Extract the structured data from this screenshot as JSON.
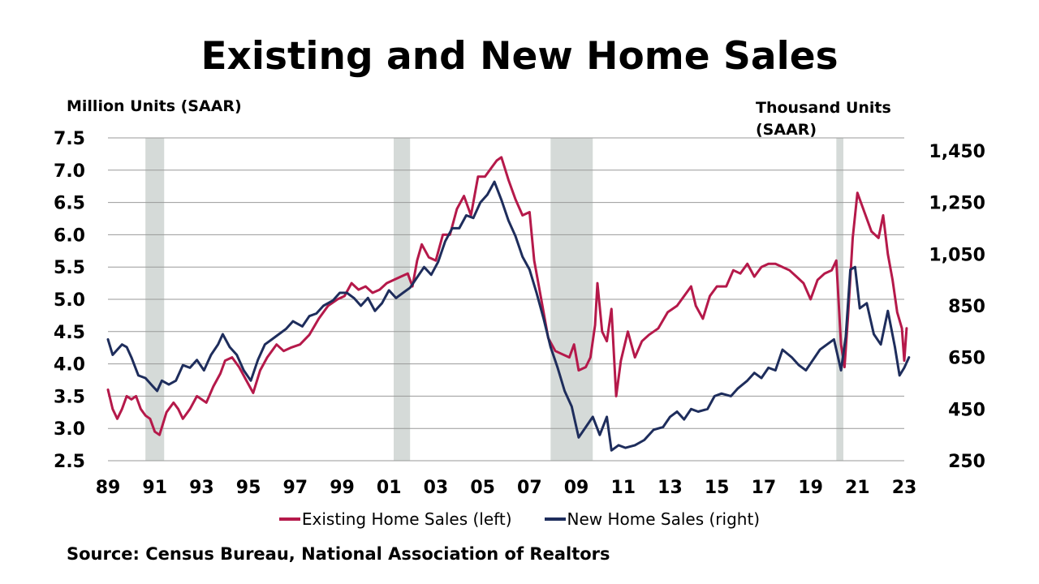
{
  "title": "Existing and New Home Sales",
  "source": "Source: Census Bureau, National Association of Realtors",
  "colors": {
    "existing": "#B5194A",
    "new": "#1E2D5C",
    "recession": "#D5DAD8",
    "grid": "#999999"
  },
  "chart_data": {
    "type": "line",
    "title": "Existing and New Home Sales",
    "left_axis": {
      "label": "Million Units (SAAR)",
      "range": [
        2.5,
        7.5
      ],
      "ticks": [
        "2.5",
        "3.0",
        "3.5",
        "4.0",
        "4.5",
        "5.0",
        "5.5",
        "6.0",
        "6.5",
        "7.0",
        "7.5"
      ]
    },
    "right_axis": {
      "label_lines": [
        "Thousand Units",
        "(SAAR)"
      ],
      "range": [
        250,
        1500
      ],
      "ticks": [
        "250",
        "450",
        "650",
        "850",
        "1,050",
        "1,250",
        "1,450"
      ]
    },
    "x_axis": {
      "range": [
        1989,
        2023
      ],
      "ticks": [
        "89",
        "91",
        "93",
        "95",
        "97",
        "99",
        "01",
        "03",
        "05",
        "07",
        "09",
        "11",
        "13",
        "15",
        "17",
        "19",
        "21",
        "23"
      ]
    },
    "grid": "horizontal, left axis",
    "legend_position": "bottom",
    "recession_bands": [
      [
        1990.6,
        1991.4
      ],
      [
        2001.2,
        2001.9
      ],
      [
        2007.9,
        2009.7
      ],
      [
        2020.1,
        2020.4
      ]
    ],
    "series": [
      {
        "name": "Existing Home Sales (left)",
        "axis": "left",
        "points": [
          [
            1989.0,
            3.6
          ],
          [
            1989.2,
            3.3
          ],
          [
            1989.4,
            3.15
          ],
          [
            1989.6,
            3.3
          ],
          [
            1989.8,
            3.5
          ],
          [
            1990.0,
            3.45
          ],
          [
            1990.2,
            3.5
          ],
          [
            1990.4,
            3.3
          ],
          [
            1990.6,
            3.2
          ],
          [
            1990.8,
            3.15
          ],
          [
            1991.0,
            2.95
          ],
          [
            1991.2,
            2.9
          ],
          [
            1991.5,
            3.25
          ],
          [
            1991.8,
            3.4
          ],
          [
            1992.0,
            3.3
          ],
          [
            1992.2,
            3.15
          ],
          [
            1992.5,
            3.3
          ],
          [
            1992.8,
            3.5
          ],
          [
            1993.2,
            3.4
          ],
          [
            1993.5,
            3.65
          ],
          [
            1993.8,
            3.85
          ],
          [
            1994.0,
            4.05
          ],
          [
            1994.3,
            4.1
          ],
          [
            1994.6,
            3.95
          ],
          [
            1994.9,
            3.75
          ],
          [
            1995.2,
            3.55
          ],
          [
            1995.5,
            3.9
          ],
          [
            1995.8,
            4.1
          ],
          [
            1996.2,
            4.3
          ],
          [
            1996.5,
            4.2
          ],
          [
            1996.8,
            4.25
          ],
          [
            1997.2,
            4.3
          ],
          [
            1997.6,
            4.45
          ],
          [
            1998.0,
            4.7
          ],
          [
            1998.4,
            4.9
          ],
          [
            1998.8,
            5.0
          ],
          [
            1999.1,
            5.05
          ],
          [
            1999.4,
            5.25
          ],
          [
            1999.7,
            5.15
          ],
          [
            2000.0,
            5.2
          ],
          [
            2000.3,
            5.1
          ],
          [
            2000.6,
            5.15
          ],
          [
            2000.9,
            5.25
          ],
          [
            2001.2,
            5.3
          ],
          [
            2001.5,
            5.35
          ],
          [
            2001.8,
            5.4
          ],
          [
            2002.0,
            5.2
          ],
          [
            2002.2,
            5.6
          ],
          [
            2002.4,
            5.85
          ],
          [
            2002.7,
            5.65
          ],
          [
            2003.0,
            5.6
          ],
          [
            2003.3,
            6.0
          ],
          [
            2003.6,
            6.0
          ],
          [
            2003.9,
            6.4
          ],
          [
            2004.2,
            6.6
          ],
          [
            2004.5,
            6.3
          ],
          [
            2004.8,
            6.9
          ],
          [
            2005.1,
            6.9
          ],
          [
            2005.4,
            7.05
          ],
          [
            2005.6,
            7.15
          ],
          [
            2005.8,
            7.2
          ],
          [
            2006.1,
            6.85
          ],
          [
            2006.4,
            6.55
          ],
          [
            2006.7,
            6.3
          ],
          [
            2007.0,
            6.35
          ],
          [
            2007.2,
            5.6
          ],
          [
            2007.5,
            5.0
          ],
          [
            2007.8,
            4.4
          ],
          [
            2008.1,
            4.2
          ],
          [
            2008.4,
            4.15
          ],
          [
            2008.7,
            4.1
          ],
          [
            2008.9,
            4.3
          ],
          [
            2009.1,
            3.9
          ],
          [
            2009.4,
            3.95
          ],
          [
            2009.6,
            4.1
          ],
          [
            2009.8,
            4.6
          ],
          [
            2009.9,
            5.25
          ],
          [
            2010.1,
            4.5
          ],
          [
            2010.3,
            4.35
          ],
          [
            2010.5,
            4.85
          ],
          [
            2010.7,
            3.5
          ],
          [
            2010.9,
            4.05
          ],
          [
            2011.2,
            4.5
          ],
          [
            2011.5,
            4.1
          ],
          [
            2011.8,
            4.35
          ],
          [
            2012.1,
            4.45
          ],
          [
            2012.5,
            4.55
          ],
          [
            2012.9,
            4.8
          ],
          [
            2013.3,
            4.9
          ],
          [
            2013.6,
            5.05
          ],
          [
            2013.9,
            5.2
          ],
          [
            2014.1,
            4.9
          ],
          [
            2014.4,
            4.7
          ],
          [
            2014.7,
            5.05
          ],
          [
            2015.0,
            5.2
          ],
          [
            2015.4,
            5.2
          ],
          [
            2015.7,
            5.45
          ],
          [
            2016.0,
            5.4
          ],
          [
            2016.3,
            5.55
          ],
          [
            2016.6,
            5.35
          ],
          [
            2016.9,
            5.5
          ],
          [
            2017.2,
            5.55
          ],
          [
            2017.5,
            5.55
          ],
          [
            2017.8,
            5.5
          ],
          [
            2018.1,
            5.45
          ],
          [
            2018.4,
            5.35
          ],
          [
            2018.7,
            5.25
          ],
          [
            2019.0,
            5.0
          ],
          [
            2019.3,
            5.3
          ],
          [
            2019.6,
            5.4
          ],
          [
            2019.9,
            5.45
          ],
          [
            2020.1,
            5.6
          ],
          [
            2020.3,
            4.3
          ],
          [
            2020.45,
            3.95
          ],
          [
            2020.6,
            4.75
          ],
          [
            2020.8,
            5.95
          ],
          [
            2021.0,
            6.65
          ],
          [
            2021.3,
            6.35
          ],
          [
            2021.6,
            6.05
          ],
          [
            2021.9,
            5.95
          ],
          [
            2022.1,
            6.3
          ],
          [
            2022.3,
            5.7
          ],
          [
            2022.5,
            5.3
          ],
          [
            2022.7,
            4.8
          ],
          [
            2022.9,
            4.55
          ],
          [
            2023.0,
            4.05
          ],
          [
            2023.1,
            4.55
          ]
        ]
      },
      {
        "name": "New Home Sales (right)",
        "axis": "right",
        "points": [
          [
            1989.0,
            720
          ],
          [
            1989.2,
            660
          ],
          [
            1989.4,
            680
          ],
          [
            1989.6,
            700
          ],
          [
            1989.8,
            690
          ],
          [
            1990.0,
            650
          ],
          [
            1990.3,
            580
          ],
          [
            1990.6,
            570
          ],
          [
            1990.9,
            540
          ],
          [
            1991.1,
            520
          ],
          [
            1991.3,
            560
          ],
          [
            1991.6,
            545
          ],
          [
            1991.9,
            560
          ],
          [
            1992.2,
            620
          ],
          [
            1992.5,
            610
          ],
          [
            1992.8,
            640
          ],
          [
            1993.1,
            600
          ],
          [
            1993.4,
            660
          ],
          [
            1993.7,
            700
          ],
          [
            1993.9,
            740
          ],
          [
            1994.2,
            690
          ],
          [
            1994.5,
            660
          ],
          [
            1994.8,
            600
          ],
          [
            1995.1,
            560
          ],
          [
            1995.4,
            640
          ],
          [
            1995.7,
            700
          ],
          [
            1996.0,
            720
          ],
          [
            1996.3,
            740
          ],
          [
            1996.6,
            760
          ],
          [
            1996.9,
            790
          ],
          [
            1997.3,
            770
          ],
          [
            1997.6,
            810
          ],
          [
            1997.9,
            820
          ],
          [
            1998.2,
            850
          ],
          [
            1998.6,
            870
          ],
          [
            1998.9,
            900
          ],
          [
            1999.2,
            900
          ],
          [
            1999.5,
            880
          ],
          [
            1999.8,
            850
          ],
          [
            2000.1,
            880
          ],
          [
            2000.4,
            830
          ],
          [
            2000.7,
            860
          ],
          [
            2001.0,
            910
          ],
          [
            2001.3,
            880
          ],
          [
            2001.6,
            900
          ],
          [
            2001.9,
            920
          ],
          [
            2002.2,
            960
          ],
          [
            2002.5,
            1000
          ],
          [
            2002.8,
            970
          ],
          [
            2003.1,
            1020
          ],
          [
            2003.4,
            1100
          ],
          [
            2003.7,
            1150
          ],
          [
            2004.0,
            1150
          ],
          [
            2004.3,
            1200
          ],
          [
            2004.6,
            1190
          ],
          [
            2004.9,
            1250
          ],
          [
            2005.2,
            1280
          ],
          [
            2005.5,
            1330
          ],
          [
            2005.8,
            1260
          ],
          [
            2006.1,
            1180
          ],
          [
            2006.4,
            1120
          ],
          [
            2006.7,
            1040
          ],
          [
            2007.0,
            990
          ],
          [
            2007.3,
            900
          ],
          [
            2007.6,
            800
          ],
          [
            2007.9,
            690
          ],
          [
            2008.2,
            610
          ],
          [
            2008.5,
            520
          ],
          [
            2008.8,
            460
          ],
          [
            2009.1,
            340
          ],
          [
            2009.4,
            380
          ],
          [
            2009.7,
            420
          ],
          [
            2010.0,
            350
          ],
          [
            2010.3,
            420
          ],
          [
            2010.5,
            290
          ],
          [
            2010.8,
            310
          ],
          [
            2011.1,
            300
          ],
          [
            2011.5,
            310
          ],
          [
            2011.9,
            330
          ],
          [
            2012.3,
            370
          ],
          [
            2012.7,
            380
          ],
          [
            2013.0,
            420
          ],
          [
            2013.3,
            440
          ],
          [
            2013.6,
            410
          ],
          [
            2013.9,
            450
          ],
          [
            2014.2,
            440
          ],
          [
            2014.6,
            450
          ],
          [
            2014.9,
            500
          ],
          [
            2015.2,
            510
          ],
          [
            2015.6,
            500
          ],
          [
            2015.9,
            530
          ],
          [
            2016.3,
            560
          ],
          [
            2016.6,
            590
          ],
          [
            2016.9,
            570
          ],
          [
            2017.2,
            610
          ],
          [
            2017.5,
            600
          ],
          [
            2017.8,
            680
          ],
          [
            2018.2,
            650
          ],
          [
            2018.5,
            620
          ],
          [
            2018.8,
            600
          ],
          [
            2019.1,
            640
          ],
          [
            2019.4,
            680
          ],
          [
            2019.7,
            700
          ],
          [
            2020.0,
            720
          ],
          [
            2020.3,
            600
          ],
          [
            2020.5,
            730
          ],
          [
            2020.7,
            990
          ],
          [
            2020.9,
            1000
          ],
          [
            2021.1,
            840
          ],
          [
            2021.4,
            860
          ],
          [
            2021.7,
            740
          ],
          [
            2022.0,
            700
          ],
          [
            2022.3,
            830
          ],
          [
            2022.6,
            690
          ],
          [
            2022.8,
            580
          ],
          [
            2023.0,
            610
          ],
          [
            2023.2,
            650
          ]
        ]
      }
    ]
  }
}
